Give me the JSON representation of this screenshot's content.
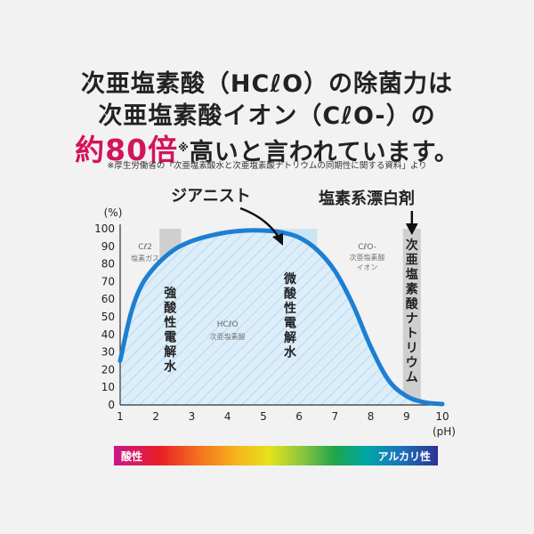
{
  "headline": {
    "line1": "次亜塩素酸（HCℓO）の除菌力は",
    "line2": "次亜塩素酸イオン（CℓO-）の",
    "line3_prefix": "約80倍",
    "line3_mark": "※",
    "line3_suffix": "高いと言われています。"
  },
  "source_note": "※厚生労働省の「次亜塩素酸水と次亜塩素酸ナトリウムの同期性に関する資料」より",
  "annotations": {
    "zianist": "ジアニスト",
    "bleach": "塩素系漂白剤"
  },
  "regions": {
    "cl2": {
      "formula": "Cℓ2",
      "name": "塩素ガス"
    },
    "hclo": {
      "formula": "HCℓO",
      "name": "次亜塩素酸"
    },
    "clo": {
      "formula": "CℓO-",
      "name1": "次亜塩素酸",
      "name2": "イオン"
    },
    "strong_acid": [
      "強",
      "酸",
      "性",
      "電",
      "解",
      "水"
    ],
    "weak_acid": [
      "微",
      "酸",
      "性",
      "電",
      "解",
      "水"
    ],
    "sodium": [
      "次",
      "亜",
      "塩",
      "素",
      "酸",
      "ナ",
      "ト",
      "リ",
      "ウ",
      "ム"
    ]
  },
  "ph_bar": {
    "left": "酸性",
    "right": "アルカリ性"
  },
  "chart_data": {
    "type": "line",
    "ylabel": "(%)",
    "xlabel": "(pH)",
    "xlim": [
      1,
      10
    ],
    "ylim": [
      0,
      100
    ],
    "x_ticks": [
      1,
      2,
      3,
      4,
      5,
      6,
      7,
      8,
      9,
      10
    ],
    "y_ticks": [
      0,
      10,
      20,
      30,
      40,
      50,
      60,
      70,
      80,
      90,
      100
    ],
    "grid": false,
    "series": [
      {
        "x": [
          1.0,
          1.3,
          1.6,
          2.0,
          2.5,
          3.0,
          3.5,
          4.0,
          4.5,
          5.0,
          5.5,
          6.0,
          6.5,
          7.0,
          7.5,
          8.0,
          8.5,
          9.0,
          9.5,
          10.0
        ],
        "values": [
          25,
          52,
          68,
          79,
          88,
          93,
          96,
          98,
          99,
          99,
          98,
          95,
          88,
          76,
          57,
          33,
          14,
          5,
          1.5,
          0.5
        ],
        "color": "#1e7fd2"
      }
    ],
    "bands": [
      {
        "label": "strong_acid",
        "x0": 2.1,
        "x1": 2.7,
        "color": "#c9c9c9"
      },
      {
        "label": "weak_acid",
        "x0": 5.0,
        "x1": 6.5,
        "color": "#bfe0f3"
      },
      {
        "label": "sodium",
        "x0": 8.9,
        "x1": 9.4,
        "color": "#c9c9c9"
      }
    ]
  }
}
